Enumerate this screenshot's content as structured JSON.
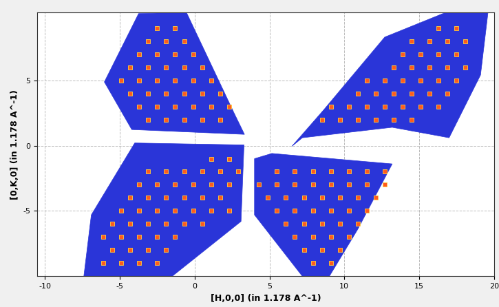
{
  "chart_data": {
    "type": "scatter",
    "x_label": "[H,0,0] (in 1.178 A^-1)",
    "y_label": "[0,K,0] (in 1.178 A^-1)",
    "xlim": [
      -10.5,
      20
    ],
    "ylim": [
      -10,
      10.2
    ],
    "xticks": [
      -10,
      -5,
      0,
      5,
      10,
      15,
      20
    ],
    "yticks": [
      -5,
      0,
      5
    ],
    "grid": true,
    "marker": "s",
    "color": "#ff5a1e",
    "regions": [
      {
        "color": "#2a35d8",
        "points": [
          [
            -3.74,
            10.1
          ],
          [
            -0.55,
            10.2
          ],
          [
            2.65,
            2.46
          ],
          [
            3.33,
            0.86
          ],
          [
            -4.2,
            1.23
          ],
          [
            -6.03,
            4.87
          ]
        ]
      },
      {
        "color": "#2a35d8",
        "points": [
          [
            6.5,
            -0.05
          ],
          [
            8.6,
            2.7
          ],
          [
            12.7,
            8.3
          ],
          [
            16.8,
            10.2
          ],
          [
            19.6,
            10.2
          ],
          [
            19.1,
            5.4
          ],
          [
            17.0,
            0.6
          ],
          [
            13.2,
            1.4
          ],
          [
            7.2,
            0.6
          ]
        ]
      },
      {
        "color": "#2a35d8",
        "points": [
          [
            -6.9,
            -5.3
          ],
          [
            -7.4,
            -10
          ],
          [
            -1.5,
            -10
          ],
          [
            3.1,
            -5.8
          ],
          [
            3.3,
            0.05
          ],
          [
            -4.0,
            0.2
          ]
        ]
      },
      {
        "color": "#2a35d8",
        "points": [
          [
            5.16,
            -0.6
          ],
          [
            13.2,
            -1.4
          ],
          [
            10.9,
            -6.4
          ],
          [
            9.0,
            -10
          ],
          [
            7.2,
            -10
          ],
          [
            4.0,
            -5.3
          ],
          [
            4.0,
            -1.0
          ]
        ]
      }
    ],
    "points": [
      [
        -2.5,
        9
      ],
      [
        -1.3,
        9
      ],
      [
        -3.1,
        8
      ],
      [
        -1.9,
        8
      ],
      [
        -0.7,
        8
      ],
      [
        -3.7,
        7
      ],
      [
        -2.5,
        7
      ],
      [
        -1.3,
        7
      ],
      [
        -0.1,
        7
      ],
      [
        -4.3,
        6
      ],
      [
        -3.1,
        6
      ],
      [
        -1.9,
        6
      ],
      [
        -0.7,
        6
      ],
      [
        0.5,
        6
      ],
      [
        -4.9,
        5
      ],
      [
        -3.7,
        5
      ],
      [
        -2.5,
        5
      ],
      [
        -1.3,
        5
      ],
      [
        -0.1,
        5
      ],
      [
        1.1,
        5
      ],
      [
        -4.3,
        4
      ],
      [
        -3.1,
        4
      ],
      [
        -1.9,
        4
      ],
      [
        -0.7,
        4
      ],
      [
        0.5,
        4
      ],
      [
        1.7,
        4
      ],
      [
        -3.7,
        3
      ],
      [
        -2.5,
        3
      ],
      [
        -1.3,
        3
      ],
      [
        -0.1,
        3
      ],
      [
        1.1,
        3
      ],
      [
        2.3,
        3
      ],
      [
        -3.1,
        2
      ],
      [
        -1.9,
        2
      ],
      [
        -0.7,
        2
      ],
      [
        0.5,
        2
      ],
      [
        1.7,
        2
      ],
      [
        17.5,
        9
      ],
      [
        16.3,
        9
      ],
      [
        18.1,
        8
      ],
      [
        16.9,
        8
      ],
      [
        15.7,
        8
      ],
      [
        14.5,
        8
      ],
      [
        17.5,
        7
      ],
      [
        16.3,
        7
      ],
      [
        15.1,
        7
      ],
      [
        13.9,
        7
      ],
      [
        18.1,
        6
      ],
      [
        16.9,
        6
      ],
      [
        15.7,
        6
      ],
      [
        14.5,
        6
      ],
      [
        13.3,
        6
      ],
      [
        17.5,
        5
      ],
      [
        16.3,
        5
      ],
      [
        15.1,
        5
      ],
      [
        13.9,
        5
      ],
      [
        12.7,
        5
      ],
      [
        11.5,
        5
      ],
      [
        16.9,
        4
      ],
      [
        15.7,
        4
      ],
      [
        14.5,
        4
      ],
      [
        13.3,
        4
      ],
      [
        12.1,
        4
      ],
      [
        10.9,
        4
      ],
      [
        16.3,
        3
      ],
      [
        15.1,
        3
      ],
      [
        13.9,
        3
      ],
      [
        12.7,
        3
      ],
      [
        11.5,
        3
      ],
      [
        10.3,
        3
      ],
      [
        9.1,
        3
      ],
      [
        14.5,
        2
      ],
      [
        13.3,
        2
      ],
      [
        12.1,
        2
      ],
      [
        10.9,
        2
      ],
      [
        9.7,
        2
      ],
      [
        8.5,
        2
      ],
      [
        -6.1,
        -9
      ],
      [
        -4.9,
        -9
      ],
      [
        -3.7,
        -9
      ],
      [
        -2.5,
        -9
      ],
      [
        -5.5,
        -8
      ],
      [
        -4.3,
        -8
      ],
      [
        -3.1,
        -8
      ],
      [
        -1.9,
        -8
      ],
      [
        -6.1,
        -7
      ],
      [
        -4.9,
        -7
      ],
      [
        -3.7,
        -7
      ],
      [
        -2.5,
        -7
      ],
      [
        -1.3,
        -7
      ],
      [
        -5.5,
        -6
      ],
      [
        -4.3,
        -6
      ],
      [
        -3.1,
        -6
      ],
      [
        -1.9,
        -6
      ],
      [
        -0.7,
        -6
      ],
      [
        0.5,
        -6
      ],
      [
        -4.9,
        -5
      ],
      [
        -3.7,
        -5
      ],
      [
        -2.5,
        -5
      ],
      [
        -1.3,
        -5
      ],
      [
        -0.1,
        -5
      ],
      [
        1.1,
        -5
      ],
      [
        2.3,
        -5
      ],
      [
        -4.3,
        -4
      ],
      [
        -3.1,
        -4
      ],
      [
        -1.9,
        -4
      ],
      [
        -0.7,
        -4
      ],
      [
        0.5,
        -4
      ],
      [
        1.7,
        -4
      ],
      [
        -3.7,
        -3
      ],
      [
        -2.5,
        -3
      ],
      [
        -1.3,
        -3
      ],
      [
        -0.1,
        -3
      ],
      [
        1.1,
        -3
      ],
      [
        2.3,
        -3
      ],
      [
        -3.1,
        -2
      ],
      [
        -1.9,
        -2
      ],
      [
        -0.7,
        -2
      ],
      [
        0.5,
        -2
      ],
      [
        1.7,
        -2
      ],
      [
        2.9,
        -2
      ],
      [
        1.1,
        -1
      ],
      [
        2.3,
        -1
      ],
      [
        7.9,
        -9
      ],
      [
        9.1,
        -9
      ],
      [
        7.3,
        -8
      ],
      [
        8.5,
        -8
      ],
      [
        9.7,
        -8
      ],
      [
        6.7,
        -7
      ],
      [
        7.9,
        -7
      ],
      [
        9.1,
        -7
      ],
      [
        10.3,
        -7
      ],
      [
        6.1,
        -6
      ],
      [
        7.3,
        -6
      ],
      [
        8.5,
        -6
      ],
      [
        9.7,
        -6
      ],
      [
        10.9,
        -6
      ],
      [
        5.5,
        -5
      ],
      [
        6.7,
        -5
      ],
      [
        7.9,
        -5
      ],
      [
        9.1,
        -5
      ],
      [
        10.3,
        -5
      ],
      [
        11.5,
        -5
      ],
      [
        4.9,
        -4
      ],
      [
        6.1,
        -4
      ],
      [
        7.3,
        -4
      ],
      [
        8.5,
        -4
      ],
      [
        9.7,
        -4
      ],
      [
        10.9,
        -4
      ],
      [
        12.1,
        -4
      ],
      [
        4.3,
        -3
      ],
      [
        5.5,
        -3
      ],
      [
        6.7,
        -3
      ],
      [
        7.9,
        -3
      ],
      [
        9.1,
        -3
      ],
      [
        10.3,
        -3
      ],
      [
        11.5,
        -3
      ],
      [
        12.7,
        -3
      ],
      [
        5.5,
        -2
      ],
      [
        6.7,
        -2
      ],
      [
        7.9,
        -2
      ],
      [
        9.1,
        -2
      ],
      [
        10.3,
        -2
      ],
      [
        11.5,
        -2
      ],
      [
        12.7,
        -2
      ]
    ]
  }
}
